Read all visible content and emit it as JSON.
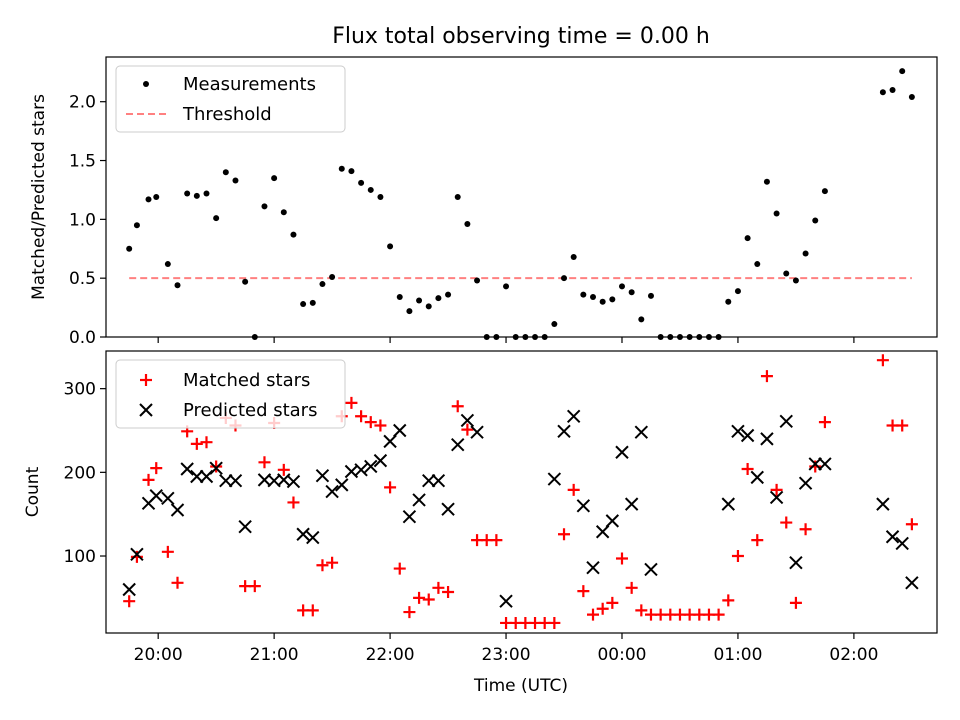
{
  "title": "Flux total observing time = 0.00 h",
  "colors": {
    "measurements": "#000000",
    "threshold": "#ff8080",
    "matched": "#ff0000",
    "predicted": "#000000"
  },
  "chart_data": [
    {
      "type": "scatter",
      "ylabel": "Matched/Predicted stars",
      "ylim": [
        0,
        2.38
      ],
      "yticks": [
        0.0,
        0.5,
        1.0,
        1.5,
        2.0
      ],
      "ytick_labels": [
        "0.0",
        "0.5",
        "1.0",
        "1.5",
        "2.0"
      ],
      "legend_location": "upper left",
      "series": [
        {
          "name": "Measurements",
          "marker": "dot",
          "points": [
            [
              "19:45",
              0.75
            ],
            [
              "19:49",
              0.95
            ],
            [
              "19:55",
              1.17
            ],
            [
              "19:59",
              1.19
            ],
            [
              "20:05",
              0.62
            ],
            [
              "20:10",
              0.44
            ],
            [
              "20:15",
              1.22
            ],
            [
              "20:20",
              1.2
            ],
            [
              "20:25",
              1.22
            ],
            [
              "20:30",
              1.01
            ],
            [
              "20:35",
              1.4
            ],
            [
              "20:40",
              1.33
            ],
            [
              "20:45",
              0.47
            ],
            [
              "20:50",
              0.0
            ],
            [
              "20:55",
              1.11
            ],
            [
              "21:00",
              1.35
            ],
            [
              "21:05",
              1.06
            ],
            [
              "21:10",
              0.87
            ],
            [
              "21:15",
              0.28
            ],
            [
              "21:20",
              0.29
            ],
            [
              "21:25",
              0.45
            ],
            [
              "21:30",
              0.51
            ],
            [
              "21:35",
              1.43
            ],
            [
              "21:40",
              1.41
            ],
            [
              "21:45",
              1.31
            ],
            [
              "21:50",
              1.25
            ],
            [
              "21:55",
              1.19
            ],
            [
              "22:00",
              0.77
            ],
            [
              "22:05",
              0.34
            ],
            [
              "22:10",
              0.22
            ],
            [
              "22:15",
              0.31
            ],
            [
              "22:20",
              0.26
            ],
            [
              "22:25",
              0.33
            ],
            [
              "22:30",
              0.36
            ],
            [
              "22:35",
              1.19
            ],
            [
              "22:40",
              0.96
            ],
            [
              "22:45",
              0.48
            ],
            [
              "22:50",
              0.0
            ],
            [
              "22:55",
              0.0
            ],
            [
              "23:00",
              0.43
            ],
            [
              "23:05",
              0.0
            ],
            [
              "23:10",
              0.0
            ],
            [
              "23:15",
              0.0
            ],
            [
              "23:20",
              0.0
            ],
            [
              "23:25",
              0.11
            ],
            [
              "23:30",
              0.5
            ],
            [
              "23:35",
              0.68
            ],
            [
              "23:40",
              0.36
            ],
            [
              "23:45",
              0.34
            ],
            [
              "23:50",
              0.3
            ],
            [
              "23:55",
              0.32
            ],
            [
              "00:00",
              0.43
            ],
            [
              "00:05",
              0.38
            ],
            [
              "00:10",
              0.15
            ],
            [
              "00:15",
              0.35
            ],
            [
              "00:20",
              0.0
            ],
            [
              "00:25",
              0.0
            ],
            [
              "00:30",
              0.0
            ],
            [
              "00:35",
              0.0
            ],
            [
              "00:40",
              0.0
            ],
            [
              "00:45",
              0.0
            ],
            [
              "00:50",
              0.0
            ],
            [
              "00:55",
              0.3
            ],
            [
              "01:00",
              0.39
            ],
            [
              "01:05",
              0.84
            ],
            [
              "01:10",
              0.62
            ],
            [
              "01:15",
              1.32
            ],
            [
              "01:20",
              1.05
            ],
            [
              "01:25",
              0.54
            ],
            [
              "01:30",
              0.48
            ],
            [
              "01:35",
              0.71
            ],
            [
              "01:40",
              0.99
            ],
            [
              "01:45",
              1.24
            ],
            [
              "02:15",
              2.08
            ],
            [
              "02:20",
              2.1
            ],
            [
              "02:25",
              2.26
            ],
            [
              "02:30",
              2.04
            ]
          ]
        },
        {
          "name": "Threshold",
          "marker": "dashed-line",
          "points": [
            [
              "19:45",
              0.5
            ],
            [
              "02:30",
              0.5
            ]
          ]
        }
      ]
    },
    {
      "type": "scatter",
      "xlabel": "Time (UTC)",
      "ylabel": "Count",
      "ylim": [
        8,
        345
      ],
      "yticks": [
        100,
        200,
        300
      ],
      "ytick_labels": [
        "100",
        "200",
        "300"
      ],
      "xlim": [
        "19:33",
        "02:43"
      ],
      "xticks": [
        "20:00",
        "21:00",
        "22:00",
        "23:00",
        "00:00",
        "01:00",
        "02:00"
      ],
      "legend_location": "upper left",
      "series": [
        {
          "name": "Matched stars",
          "marker": "plus",
          "points": [
            [
              "19:45",
              46
            ],
            [
              "19:49",
              99
            ],
            [
              "19:55",
              191
            ],
            [
              "19:59",
              205
            ],
            [
              "20:05",
              105
            ],
            [
              "20:10",
              68
            ],
            [
              "20:15",
              249
            ],
            [
              "20:20",
              234
            ],
            [
              "20:25",
              236
            ],
            [
              "20:30",
              207
            ],
            [
              "20:35",
              265
            ],
            [
              "20:40",
              256
            ],
            [
              "20:45",
              64
            ],
            [
              "20:50",
              64
            ],
            [
              "20:55",
              212
            ],
            [
              "21:00",
              259
            ],
            [
              "21:05",
              203
            ],
            [
              "21:10",
              164
            ],
            [
              "21:15",
              35
            ],
            [
              "21:20",
              35
            ],
            [
              "21:25",
              89
            ],
            [
              "21:30",
              92
            ],
            [
              "21:35",
              267
            ],
            [
              "21:40",
              283
            ],
            [
              "21:45",
              267
            ],
            [
              "21:50",
              260
            ],
            [
              "21:55",
              256
            ],
            [
              "22:00",
              182
            ],
            [
              "22:05",
              85
            ],
            [
              "22:10",
              33
            ],
            [
              "22:15",
              50
            ],
            [
              "22:20",
              48
            ],
            [
              "22:25",
              62
            ],
            [
              "22:30",
              57
            ],
            [
              "22:35",
              279
            ],
            [
              "22:40",
              251
            ],
            [
              "22:45",
              119
            ],
            [
              "22:50",
              119
            ],
            [
              "22:55",
              119
            ],
            [
              "23:00",
              20
            ],
            [
              "23:05",
              20
            ],
            [
              "23:10",
              20
            ],
            [
              "23:15",
              20
            ],
            [
              "23:20",
              20
            ],
            [
              "23:25",
              20
            ],
            [
              "23:30",
              126
            ],
            [
              "23:35",
              179
            ],
            [
              "23:40",
              58
            ],
            [
              "23:45",
              30
            ],
            [
              "23:50",
              37
            ],
            [
              "23:55",
              44
            ],
            [
              "00:00",
              97
            ],
            [
              "00:05",
              62
            ],
            [
              "00:10",
              35
            ],
            [
              "00:15",
              30
            ],
            [
              "00:20",
              30
            ],
            [
              "00:25",
              30
            ],
            [
              "00:30",
              30
            ],
            [
              "00:35",
              30
            ],
            [
              "00:40",
              30
            ],
            [
              "00:45",
              30
            ],
            [
              "00:50",
              30
            ],
            [
              "00:55",
              47
            ],
            [
              "01:00",
              100
            ],
            [
              "01:05",
              204
            ],
            [
              "01:10",
              119
            ],
            [
              "01:15",
              315
            ],
            [
              "01:20",
              179
            ],
            [
              "01:25",
              140
            ],
            [
              "01:30",
              44
            ],
            [
              "01:35",
              132
            ],
            [
              "01:40",
              207
            ],
            [
              "01:45",
              260
            ],
            [
              "02:15",
              334
            ],
            [
              "02:20",
              256
            ],
            [
              "02:25",
              256
            ],
            [
              "02:30",
              138
            ]
          ]
        },
        {
          "name": "Predicted stars",
          "marker": "x",
          "points": [
            [
              "19:45",
              60
            ],
            [
              "19:49",
              102
            ],
            [
              "19:55",
              163
            ],
            [
              "19:59",
              172
            ],
            [
              "20:05",
              169
            ],
            [
              "20:10",
              155
            ],
            [
              "20:15",
              204
            ],
            [
              "20:20",
              195
            ],
            [
              "20:25",
              195
            ],
            [
              "20:30",
              205
            ],
            [
              "20:35",
              190
            ],
            [
              "20:40",
              190
            ],
            [
              "20:45",
              135
            ],
            [
              "20:55",
              191
            ],
            [
              "21:00",
              190
            ],
            [
              "21:05",
              191
            ],
            [
              "21:10",
              189
            ],
            [
              "21:15",
              126
            ],
            [
              "21:20",
              122
            ],
            [
              "21:25",
              196
            ],
            [
              "21:30",
              177
            ],
            [
              "21:35",
              185
            ],
            [
              "21:40",
              201
            ],
            [
              "21:45",
              203
            ],
            [
              "21:50",
              207
            ],
            [
              "21:55",
              214
            ],
            [
              "22:00",
              237
            ],
            [
              "22:05",
              250
            ],
            [
              "22:10",
              147
            ],
            [
              "22:15",
              167
            ],
            [
              "22:20",
              190
            ],
            [
              "22:25",
              190
            ],
            [
              "22:30",
              156
            ],
            [
              "22:35",
              233
            ],
            [
              "22:40",
              262
            ],
            [
              "22:45",
              248
            ],
            [
              "23:00",
              46
            ],
            [
              "23:25",
              192
            ],
            [
              "23:30",
              249
            ],
            [
              "23:35",
              267
            ],
            [
              "23:40",
              160
            ],
            [
              "23:45",
              86
            ],
            [
              "23:50",
              129
            ],
            [
              "23:55",
              142
            ],
            [
              "00:00",
              224
            ],
            [
              "00:05",
              162
            ],
            [
              "00:10",
              248
            ],
            [
              "00:15",
              84
            ],
            [
              "00:55",
              162
            ],
            [
              "01:00",
              249
            ],
            [
              "01:05",
              244
            ],
            [
              "01:10",
              194
            ],
            [
              "01:15",
              240
            ],
            [
              "01:20",
              170
            ],
            [
              "01:25",
              261
            ],
            [
              "01:30",
              92
            ],
            [
              "01:35",
              187
            ],
            [
              "01:40",
              210
            ],
            [
              "01:45",
              210
            ],
            [
              "02:15",
              162
            ],
            [
              "02:20",
              123
            ],
            [
              "02:25",
              115
            ],
            [
              "02:30",
              68
            ]
          ]
        }
      ]
    }
  ]
}
